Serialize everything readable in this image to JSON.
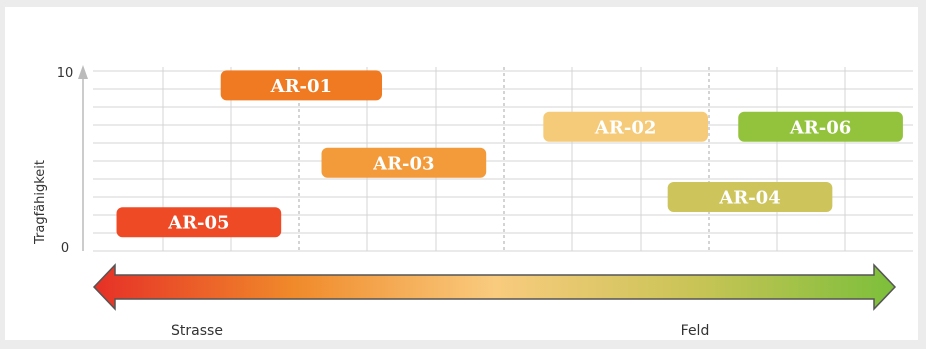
{
  "chart_data": {
    "type": "bar",
    "ylabel": "Tragfähigkeit",
    "ylim": [
      0,
      10
    ],
    "y_ticks": [
      "0",
      "10"
    ],
    "x_axis": {
      "left_label": "Strasse",
      "right_label": "Feld"
    },
    "bars": [
      {
        "name": "AR-01",
        "x_start": 1.9,
        "x_end": 4.3,
        "y": 9.2,
        "color": "#f07a22"
      },
      {
        "name": "AR-02",
        "x_start": 6.7,
        "x_end": 9.15,
        "y": 6.9,
        "color": "#f5cb7a"
      },
      {
        "name": "AR-03",
        "x_start": 3.4,
        "x_end": 5.85,
        "y": 4.9,
        "color": "#f39a3a"
      },
      {
        "name": "AR-04",
        "x_start": 8.55,
        "x_end": 11.0,
        "y": 3.0,
        "color": "#cdc45c"
      },
      {
        "name": "AR-05",
        "x_start": 0.35,
        "x_end": 2.8,
        "y": 1.6,
        "color": "#ef4a26"
      },
      {
        "name": "AR-06",
        "x_start": 9.6,
        "x_end": 12.05,
        "y": 6.9,
        "color": "#93c33d"
      }
    ],
    "grid": true
  },
  "colors": {
    "gradient": [
      "#e63027",
      "#f08a2a",
      "#f9cb7e",
      "#c9c456",
      "#7cbf3a"
    ]
  }
}
